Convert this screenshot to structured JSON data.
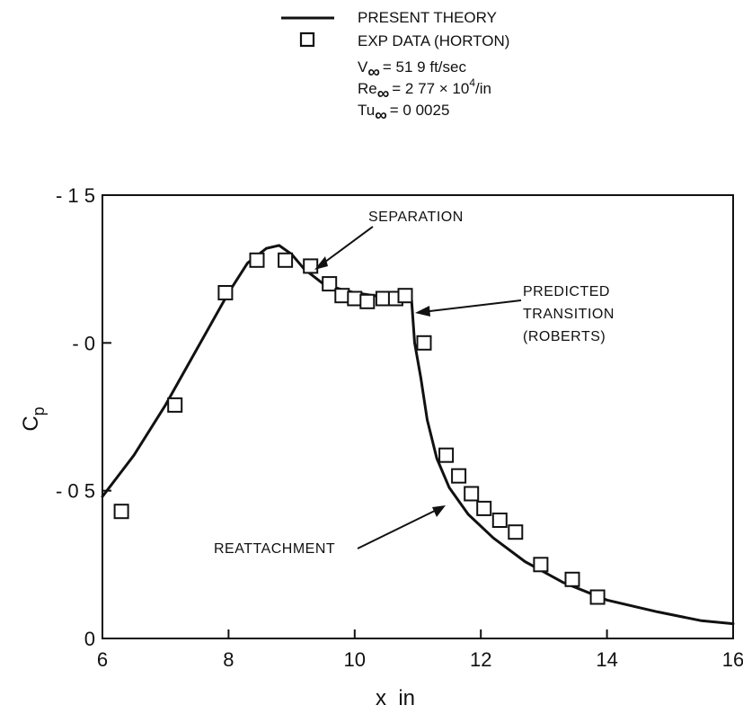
{
  "legend": {
    "theory_label": "PRESENT THEORY",
    "exp_label": "EXP DATA (HORTON)",
    "v_lhs": "V",
    "v_rhs": "= 51 9 ft/sec",
    "re_lhs": "Re",
    "re_rhs_pre": "= 2 77 × 10",
    "re_exp": "4",
    "re_rhs_post": "/in",
    "tu_lhs": "Tu",
    "tu_rhs": "= 0 0025",
    "inf_symbol": "∞"
  },
  "annotations": {
    "separation": "SEPARATION",
    "predicted": "PREDICTED",
    "transition": "TRANSITION",
    "roberts": "(ROBERTS)",
    "reattachment": "REATTACHMENT"
  },
  "chart_data": {
    "type": "line",
    "xlabel": "x  in",
    "ylabel": "C",
    "ylabel_sub": "p",
    "xlim": [
      6,
      16
    ],
    "ylim": [
      0,
      1.5
    ],
    "y_reversed_note": "axis plotted as -Cp (negative values up)",
    "x_ticks": [
      6,
      8,
      10,
      12,
      14,
      16
    ],
    "x_tick_labels": [
      "6",
      "8",
      "10",
      "12",
      "14",
      "16"
    ],
    "y_ticks": [
      1.5,
      1.0,
      0.5,
      0.0
    ],
    "y_tick_labels": [
      "- 1 5",
      "- 0",
      "- 0 5",
      "0"
    ],
    "series": [
      {
        "name": "PRESENT THEORY",
        "kind": "line",
        "x": [
          6.0,
          6.5,
          7.0,
          7.5,
          8.0,
          8.3,
          8.6,
          8.8,
          9.0,
          9.2,
          9.5,
          9.8,
          10.0,
          10.3,
          10.6,
          10.9,
          10.95,
          11.05,
          11.15,
          11.3,
          11.5,
          11.8,
          12.2,
          12.7,
          13.3,
          14.0,
          14.8,
          15.5,
          16.0
        ],
        "y": [
          0.48,
          0.62,
          0.79,
          0.98,
          1.17,
          1.27,
          1.32,
          1.33,
          1.3,
          1.25,
          1.2,
          1.18,
          1.17,
          1.16,
          1.15,
          1.15,
          1.0,
          0.88,
          0.74,
          0.61,
          0.51,
          0.42,
          0.34,
          0.26,
          0.19,
          0.13,
          0.09,
          0.06,
          0.05
        ]
      },
      {
        "name": "EXP DATA (HORTON)",
        "kind": "scatter",
        "x": [
          6.3,
          7.15,
          7.95,
          8.45,
          8.9,
          9.3,
          9.6,
          9.8,
          10.0,
          10.2,
          10.45,
          10.65,
          10.8,
          11.1,
          11.45,
          11.65,
          11.85,
          12.05,
          12.3,
          12.55,
          12.95,
          13.45,
          13.85
        ],
        "y": [
          0.43,
          0.79,
          1.17,
          1.28,
          1.28,
          1.26,
          1.2,
          1.16,
          1.15,
          1.14,
          1.15,
          1.15,
          1.16,
          1.0,
          0.62,
          0.55,
          0.49,
          0.44,
          0.4,
          0.36,
          0.25,
          0.2,
          0.14
        ]
      }
    ]
  }
}
